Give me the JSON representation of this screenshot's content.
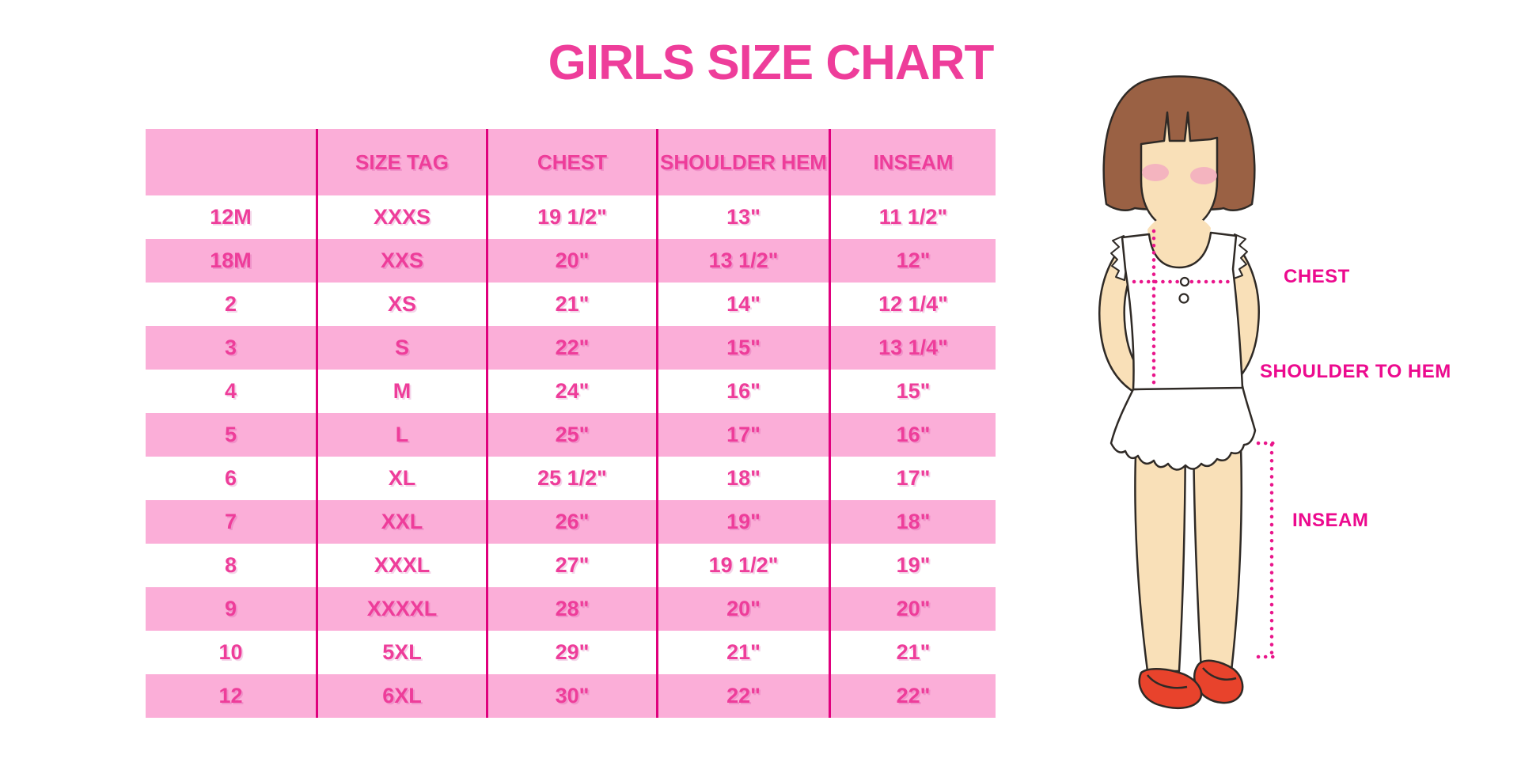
{
  "title": "GIRLS SIZE CHART",
  "chart_data": {
    "type": "table",
    "title": "GIRLS SIZE CHART",
    "columns": [
      "",
      "SIZE TAG",
      "CHEST",
      "SHOULDER HEM",
      "INSEAM"
    ],
    "rows": [
      [
        "12M",
        "XXXS",
        "19 1/2\"",
        "13\"",
        "11 1/2\""
      ],
      [
        "18M",
        "XXS",
        "20\"",
        "13 1/2\"",
        "12\""
      ],
      [
        "2",
        "XS",
        "21\"",
        "14\"",
        "12 1/4\""
      ],
      [
        "3",
        "S",
        "22\"",
        "15\"",
        "13 1/4\""
      ],
      [
        "4",
        "M",
        "24\"",
        "16\"",
        "15\""
      ],
      [
        "5",
        "L",
        "25\"",
        "17\"",
        "16\""
      ],
      [
        "6",
        "XL",
        "25 1/2\"",
        "18\"",
        "17\""
      ],
      [
        "7",
        "XXL",
        "26\"",
        "19\"",
        "18\""
      ],
      [
        "8",
        "XXXL",
        "27\"",
        "19 1/2\"",
        "19\""
      ],
      [
        "9",
        "XXXXL",
        "28\"",
        "20\"",
        "20\""
      ],
      [
        "10",
        "5XL",
        "29\"",
        "21\"",
        "21\""
      ],
      [
        "12",
        "6XL",
        "30\"",
        "22\"",
        "22\""
      ]
    ],
    "layout": {
      "row_striping": "white and pink alternating, header pink",
      "vertical_dividers": true
    }
  },
  "figure": {
    "illustration": "girl-with-measurement-lines",
    "labels": {
      "chest": "CHEST",
      "shoulder_to_hem": "SHOULDER TO HEM",
      "inseam": "INSEAM"
    }
  },
  "colors": {
    "row_pink": "#FBAED8",
    "text_pink": "#EE3D9A",
    "divider_magenta": "#E0007D",
    "label_magenta": "#EC0A8E",
    "dotted_line": "#E9168B",
    "hair_brown": "#9A6144",
    "skin": "#F9E0B8",
    "blush": "#F3A9C1",
    "shoe_red": "#E8432C",
    "outline": "#2F2A26"
  }
}
